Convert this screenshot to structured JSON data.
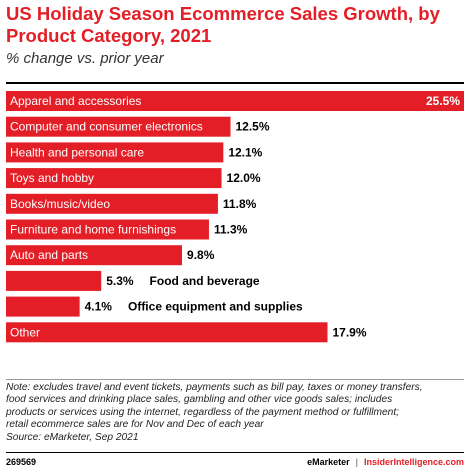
{
  "chart_data": {
    "type": "bar",
    "orientation": "horizontal",
    "title": "US Holiday Season Ecommerce Sales Growth, by Product Category, 2021",
    "subtitle": "% change vs. prior year",
    "categories": [
      "Apparel and accessories",
      "Computer and consumer electronics",
      "Health and personal care",
      "Toys and hobby",
      "Books/music/video",
      "Furniture and home furnishings",
      "Auto and parts",
      "Food and beverage",
      "Office equipment and supplies",
      "Other"
    ],
    "values": [
      25.5,
      12.5,
      12.1,
      12.0,
      11.8,
      11.3,
      9.8,
      5.3,
      4.1,
      17.9
    ],
    "value_labels": [
      "25.5%",
      "12.5%",
      "12.1%",
      "12.0%",
      "11.8%",
      "11.3%",
      "9.8%",
      "5.3%",
      "4.1%",
      "17.9%"
    ],
    "xlim": [
      0,
      25.5
    ],
    "bar_color": "#e41e26",
    "grid": false
  },
  "note": [
    "Note: excludes travel and event tickets, payments such as bill pay, taxes or money transfers,",
    "food services and drinking place sales, gambling and other vice goods sales; includes",
    "products or services using the internet, regardless of the payment method or fulfillment;",
    "retail ecommerce sales are for Nov and Dec of each year",
    "Source: eMarketer, Sep 2021"
  ],
  "footer": {
    "chart_id": "269569",
    "brand_left": "eMarketer",
    "separator": "|",
    "brand_right": "InsiderIntelligence.com"
  },
  "colors": {
    "accent": "#e41e26",
    "text": "#000000"
  }
}
